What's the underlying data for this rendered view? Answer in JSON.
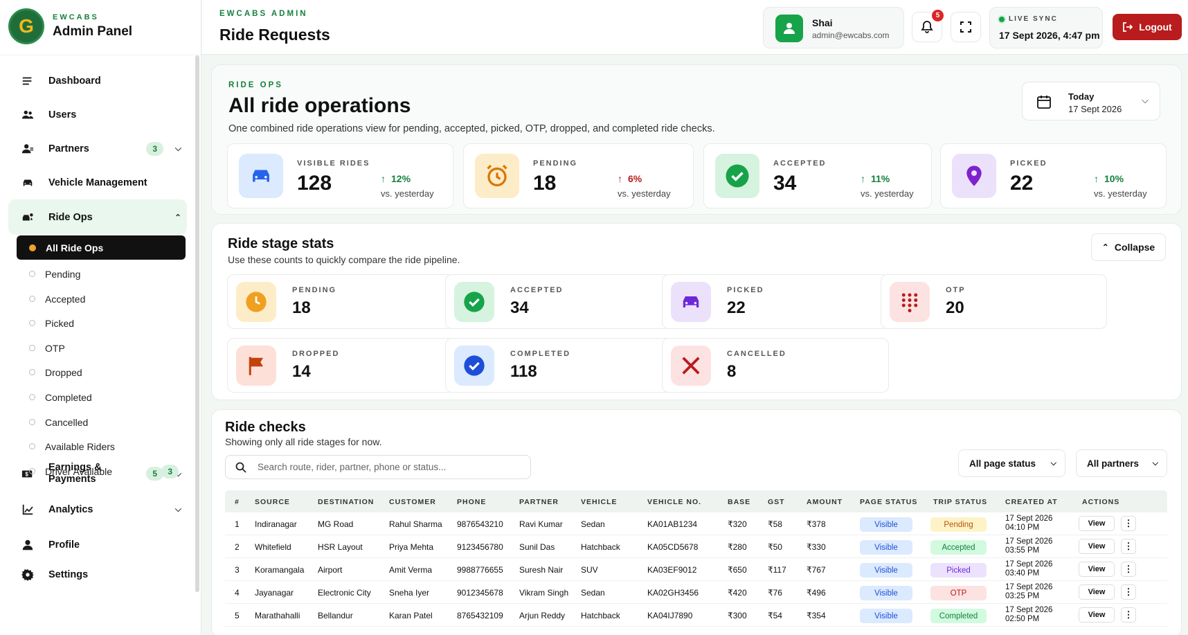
{
  "sidebar": {
    "brand_small": "EWCABS",
    "brand_title": "Admin Panel",
    "logo_letter": "G",
    "items": [
      {
        "label": "Dashboard",
        "icon": "menu-icon"
      },
      {
        "label": "Users",
        "icon": "users-icon"
      },
      {
        "label": "Partners",
        "icon": "partner-icon",
        "badge": "3"
      },
      {
        "label": "Vehicle Management",
        "icon": "car-icon"
      },
      {
        "label": "Ride Ops",
        "icon": "ride-ops-icon"
      },
      {
        "label": "Earnings & Payments",
        "icon": "money-icon",
        "badge": "5"
      },
      {
        "label": "Analytics",
        "icon": "chart-icon"
      },
      {
        "label": "Profile",
        "icon": "person-icon"
      },
      {
        "label": "Settings",
        "icon": "gear-icon"
      }
    ],
    "sub_items": [
      {
        "label": "All Ride Ops"
      },
      {
        "label": "Pending"
      },
      {
        "label": "Accepted"
      },
      {
        "label": "Picked"
      },
      {
        "label": "OTP"
      },
      {
        "label": "Dropped"
      },
      {
        "label": "Completed"
      },
      {
        "label": "Cancelled"
      },
      {
        "label": "Available Riders"
      },
      {
        "label": "Driver Available",
        "badge": "3"
      }
    ]
  },
  "header": {
    "small": "EWCABS ADMIN",
    "title": "Ride Requests",
    "user_name": "Shai",
    "user_email": "admin@ewcabs.com",
    "notifications": "5",
    "sync_label": "LIVE SYNC",
    "sync_time": "17 Sept 2026, 4:47 pm",
    "logout_label": "Logout"
  },
  "overview": {
    "small": "RIDE OPS",
    "title": "All ride operations",
    "description": "One combined ride operations view for pending, accepted, picked, OTP, dropped, and completed ride checks.",
    "date_label": "Today",
    "date_value": "17 Sept 2026",
    "stats": [
      {
        "label": "VISIBLE RIDES",
        "value": "128",
        "trend": "12%",
        "vs": "vs. yesterday",
        "color": "#2563eb"
      },
      {
        "label": "PENDING",
        "value": "18",
        "trend": "6%",
        "vs": "vs. yesterday",
        "color": "#d97706"
      },
      {
        "label": "ACCEPTED",
        "value": "34",
        "trend": "11%",
        "vs": "vs. yesterday",
        "color": "#16a34a"
      },
      {
        "label": "PICKED",
        "value": "22",
        "trend": "10%",
        "vs": "vs. yesterday",
        "color": "#7e22ce"
      }
    ]
  },
  "stages": {
    "title": "Ride stage stats",
    "description": "Use these counts to quickly compare the ride pipeline.",
    "collapse_label": "Collapse",
    "cards": [
      {
        "label": "PENDING",
        "value": "18"
      },
      {
        "label": "ACCEPTED",
        "value": "34"
      },
      {
        "label": "PICKED",
        "value": "22"
      },
      {
        "label": "OTP",
        "value": "20"
      },
      {
        "label": "DROPPED",
        "value": "14"
      },
      {
        "label": "COMPLETED",
        "value": "118"
      },
      {
        "label": "CANCELLED",
        "value": "8"
      }
    ]
  },
  "checks": {
    "title": "Ride checks",
    "description": "Showing only all ride stages for now.",
    "search_placeholder": "Search route, rider, partner, phone or status...",
    "filter_status": "All page status",
    "filter_partner": "All partners",
    "columns": [
      "#",
      "SOURCE",
      "DESTINATION",
      "CUSTOMER",
      "PHONE",
      "PARTNER",
      "VEHICLE",
      "VEHICLE NO.",
      "BASE",
      "GST",
      "AMOUNT",
      "PAGE STATUS",
      "TRIP STATUS",
      "CREATED AT",
      "ACTIONS"
    ],
    "view_label": "View",
    "more_label": "⋮",
    "rows": [
      {
        "n": "1",
        "source": "Indiranagar",
        "destination": "MG Road",
        "customer": "Rahul Sharma",
        "phone": "9876543210",
        "partner": "Ravi Kumar",
        "vehicle": "Sedan",
        "vehicle_no": "KA01AB1234",
        "base": "₹320",
        "gst": "₹58",
        "amount": "₹378",
        "page_status": "Visible",
        "trip_status": "Pending",
        "created_date": "17 Sept 2026",
        "created_time": "04:10 PM"
      },
      {
        "n": "2",
        "source": "Whitefield",
        "destination": "HSR Layout",
        "customer": "Priya Mehta",
        "phone": "9123456780",
        "partner": "Sunil Das",
        "vehicle": "Hatchback",
        "vehicle_no": "KA05CD5678",
        "base": "₹280",
        "gst": "₹50",
        "amount": "₹330",
        "page_status": "Visible",
        "trip_status": "Accepted",
        "created_date": "17 Sept 2026",
        "created_time": "03:55 PM"
      },
      {
        "n": "3",
        "source": "Koramangala",
        "destination": "Airport",
        "customer": "Amit Verma",
        "phone": "9988776655",
        "partner": "Suresh Nair",
        "vehicle": "SUV",
        "vehicle_no": "KA03EF9012",
        "base": "₹650",
        "gst": "₹117",
        "amount": "₹767",
        "page_status": "Visible",
        "trip_status": "Picked",
        "created_date": "17 Sept 2026",
        "created_time": "03:40 PM"
      },
      {
        "n": "4",
        "source": "Jayanagar",
        "destination": "Electronic City",
        "customer": "Sneha Iyer",
        "phone": "9012345678",
        "partner": "Vikram Singh",
        "vehicle": "Sedan",
        "vehicle_no": "KA02GH3456",
        "base": "₹420",
        "gst": "₹76",
        "amount": "₹496",
        "page_status": "Visible",
        "trip_status": "OTP",
        "created_date": "17 Sept 2026",
        "created_time": "03:25 PM"
      },
      {
        "n": "5",
        "source": "Marathahalli",
        "destination": "Bellandur",
        "customer": "Karan Patel",
        "phone": "8765432109",
        "partner": "Arjun Reddy",
        "vehicle": "Hatchback",
        "vehicle_no": "KA04IJ7890",
        "base": "₹300",
        "gst": "₹54",
        "amount": "₹354",
        "page_status": "Visible",
        "trip_status": "Completed",
        "created_date": "17 Sept 2026",
        "created_time": "02:50 PM"
      }
    ]
  },
  "colors": {
    "brand_green": "#15803d",
    "logout_red": "#b91c1c",
    "active_nav": "#111111"
  }
}
